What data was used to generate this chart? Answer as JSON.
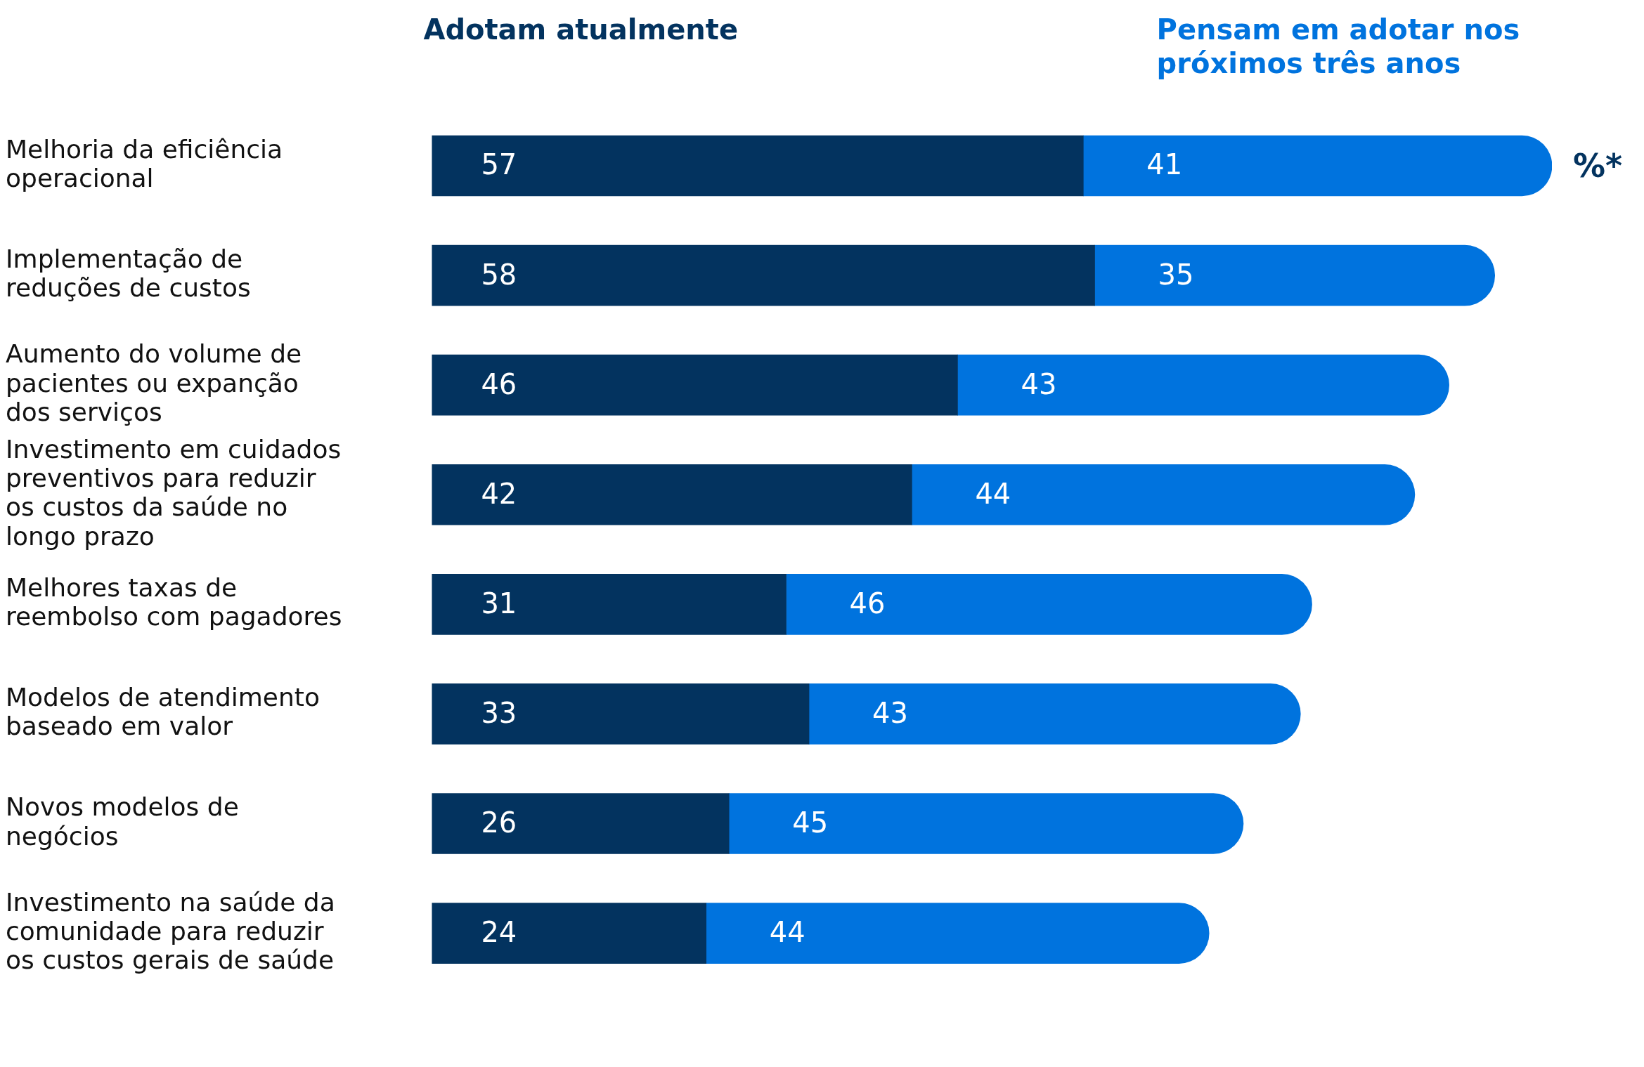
{
  "chart_data": {
    "type": "bar",
    "orientation": "horizontal",
    "stacked": true,
    "data_labels": true,
    "legend": "top",
    "tick_labels": "y",
    "categories": [
      "Melhoria da eficiência operacional",
      "Implementação de reduções de custos",
      "Aumento do volume de pacientes ou expanção dos serviços",
      "Investimento em cuidados preventivos para reduzir os custos da saúde no longo prazo",
      "Melhores taxas de reembolso com pagadores",
      "Modelos de atendimento baseado em valor",
      "Novos modelos de negócios",
      "Investimento na saúde da comunidade para reduzir os custos gerais de saúde"
    ],
    "series": [
      {
        "name": "Adotam atualmente",
        "color": "#03335f",
        "values": [
          57,
          58,
          46,
          42,
          31,
          33,
          26,
          24
        ]
      },
      {
        "name": "Pensam em adotar nos próximos três anos",
        "color": "#0073de",
        "values": [
          41,
          35,
          43,
          44,
          46,
          43,
          45,
          44
        ]
      }
    ],
    "annotations": [
      "%*"
    ]
  }
}
